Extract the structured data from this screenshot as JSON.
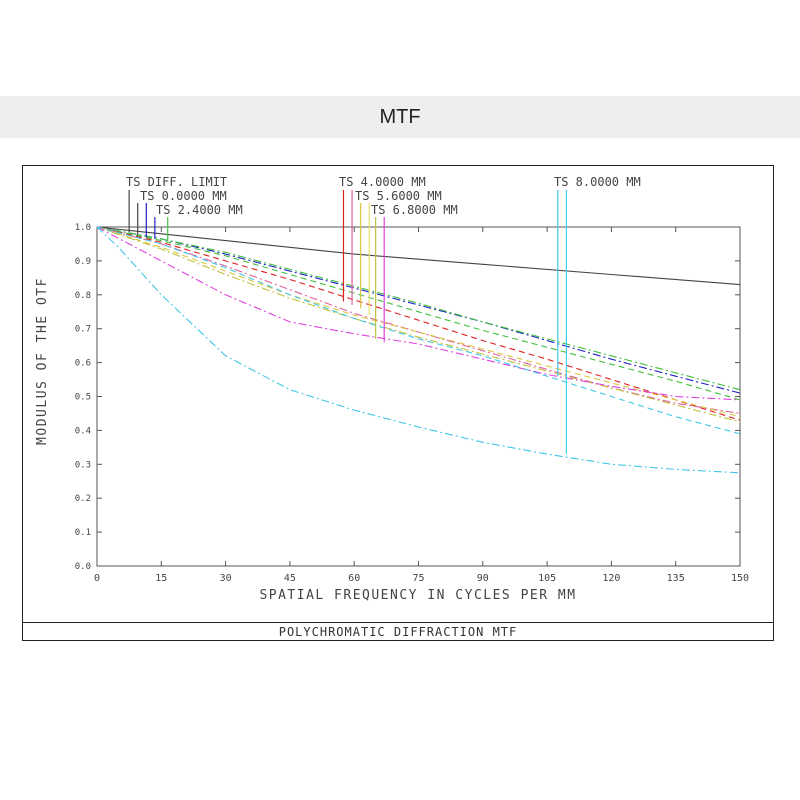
{
  "header": {
    "title": "MTF"
  },
  "caption": "POLYCHROMATIC DIFFRACTION MTF",
  "chart_data": {
    "type": "line",
    "xlabel": "SPATIAL FREQUENCY IN CYCLES PER MM",
    "ylabel": "MODULUS OF THE OTF",
    "xlim": [
      0,
      150
    ],
    "ylim": [
      0,
      1
    ],
    "xticks": [
      0,
      15,
      30,
      45,
      60,
      75,
      90,
      105,
      120,
      135,
      150
    ],
    "yticks": [
      0.0,
      0.1,
      0.2,
      0.3,
      0.4,
      0.5,
      0.6,
      0.7,
      0.8,
      0.9,
      1.0
    ],
    "xtick_labels": [
      "0",
      "15",
      "30",
      "45",
      "60",
      "75",
      "90",
      "105",
      "120",
      "135",
      "150"
    ],
    "ytick_labels": [
      "0.0",
      "0.1",
      "0.2",
      "0.3",
      "0.4",
      "0.5",
      "0.6",
      "0.7",
      "0.8",
      "0.9",
      "1.0"
    ],
    "grid": false,
    "legend_groups": [
      {
        "label": "TS DIFF. LIMIT",
        "color": "#444444",
        "tick_x": 7.5
      },
      {
        "label": "TS 0.0000 MM",
        "colors": [
          "#444444",
          "#2020c8"
        ],
        "tick_x": [
          9.5,
          11.5
        ]
      },
      {
        "label": "TS 2.4000 MM",
        "colors": [
          "#2020c8",
          "#3fbf3f"
        ],
        "tick_x": [
          13.5,
          16.5
        ]
      },
      {
        "label": "TS 4.0000 MM",
        "colors": [
          "#e02020",
          "#e060a0"
        ],
        "tick_x": [
          57.5,
          59.5
        ]
      },
      {
        "label": "TS 5.6000 MM",
        "colors": [
          "#d8c840",
          "#e8e070"
        ],
        "tick_x": [
          61.5,
          63.5
        ]
      },
      {
        "label": "TS 6.8000 MM",
        "colors": [
          "#c0c040",
          "#e040e0"
        ],
        "tick_x": [
          65.0,
          67.0
        ]
      },
      {
        "label": "TS 8.0000 MM",
        "colors": [
          "#40c8e8",
          "#40d0f0"
        ],
        "tick_x": [
          107.5,
          109.5
        ]
      }
    ],
    "series": [
      {
        "color": "#444444",
        "dash": "",
        "x": [
          0,
          30,
          60,
          90,
          120,
          150
        ],
        "y": [
          1.0,
          0.96,
          0.92,
          0.89,
          0.86,
          0.83
        ]
      },
      {
        "color": "#2020c8",
        "dash": "8 3 2 3",
        "x": [
          0,
          15,
          30,
          45,
          60,
          75,
          90,
          105,
          120,
          135,
          150
        ],
        "y": [
          1.0,
          0.965,
          0.92,
          0.87,
          0.82,
          0.77,
          0.72,
          0.665,
          0.61,
          0.56,
          0.51
        ]
      },
      {
        "color": "#3fbf3f",
        "dash": "8 3 2 3",
        "x": [
          0,
          15,
          30,
          45,
          60,
          75,
          90,
          105,
          120,
          135,
          150
        ],
        "y": [
          1.0,
          0.965,
          0.925,
          0.875,
          0.825,
          0.775,
          0.72,
          0.67,
          0.62,
          0.57,
          0.52
        ]
      },
      {
        "color": "#3fbf3f",
        "dash": "6 4",
        "x": [
          0,
          15,
          30,
          45,
          60,
          75,
          90,
          105,
          120,
          135,
          150
        ],
        "y": [
          1.0,
          0.96,
          0.915,
          0.86,
          0.805,
          0.75,
          0.695,
          0.645,
          0.595,
          0.545,
          0.49
        ]
      },
      {
        "color": "#e02020",
        "dash": "6 4",
        "x": [
          0,
          15,
          30,
          45,
          60,
          75,
          90,
          105,
          120,
          135,
          150
        ],
        "y": [
          1.0,
          0.955,
          0.9,
          0.845,
          0.785,
          0.725,
          0.665,
          0.61,
          0.55,
          0.49,
          0.43
        ]
      },
      {
        "color": "#e060a0",
        "dash": "8 3 2 3",
        "x": [
          0,
          15,
          30,
          45,
          60,
          75,
          90,
          105,
          120,
          135,
          150
        ],
        "y": [
          1.0,
          0.95,
          0.885,
          0.815,
          0.745,
          0.69,
          0.635,
          0.58,
          0.525,
          0.48,
          0.45
        ]
      },
      {
        "color": "#d8c840",
        "dash": "6 4",
        "x": [
          0,
          15,
          30,
          45,
          60,
          75,
          90,
          105,
          120,
          135,
          150
        ],
        "y": [
          1.0,
          0.94,
          0.87,
          0.8,
          0.74,
          0.69,
          0.64,
          0.59,
          0.54,
          0.49,
          0.44
        ]
      },
      {
        "color": "#c0c040",
        "dash": "8 3 2 3",
        "x": [
          0,
          15,
          30,
          45,
          60,
          75,
          90,
          105,
          120,
          135,
          150
        ],
        "y": [
          1.0,
          0.935,
          0.86,
          0.79,
          0.73,
          0.675,
          0.625,
          0.575,
          0.525,
          0.475,
          0.425
        ]
      },
      {
        "color": "#e040e0",
        "dash": "8 3 2 3",
        "x": [
          0,
          15,
          30,
          45,
          60,
          75,
          90,
          105,
          120,
          135,
          150
        ],
        "y": [
          1.0,
          0.9,
          0.8,
          0.72,
          0.685,
          0.655,
          0.61,
          0.565,
          0.53,
          0.5,
          0.49
        ]
      },
      {
        "color": "#40c8e8",
        "dash": "6 4",
        "x": [
          0,
          15,
          30,
          45,
          60,
          75,
          90,
          105,
          120,
          135,
          150
        ],
        "y": [
          1.0,
          0.95,
          0.88,
          0.8,
          0.73,
          0.67,
          0.62,
          0.56,
          0.5,
          0.44,
          0.39
        ]
      },
      {
        "color": "#40c8e8",
        "dash": "8 3 2 3",
        "x": [
          0,
          5,
          15,
          30,
          45,
          60,
          75,
          90,
          105,
          120,
          135,
          150
        ],
        "y": [
          1.0,
          0.94,
          0.8,
          0.62,
          0.52,
          0.46,
          0.41,
          0.365,
          0.33,
          0.3,
          0.285,
          0.275
        ]
      }
    ]
  }
}
